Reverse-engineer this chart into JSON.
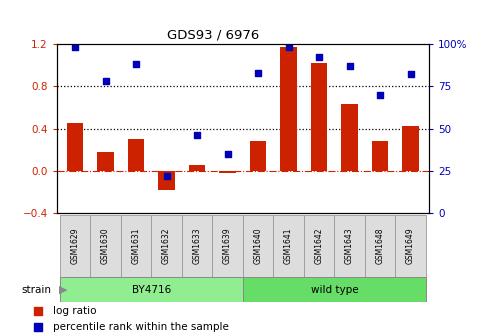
{
  "title": "GDS93 / 6976",
  "samples": [
    "GSM1629",
    "GSM1630",
    "GSM1631",
    "GSM1632",
    "GSM1633",
    "GSM1639",
    "GSM1640",
    "GSM1641",
    "GSM1642",
    "GSM1643",
    "GSM1648",
    "GSM1649"
  ],
  "log_ratio": [
    0.45,
    0.18,
    0.3,
    -0.18,
    0.06,
    -0.02,
    0.28,
    1.17,
    1.02,
    0.63,
    0.28,
    0.42
  ],
  "percentile_rank": [
    98,
    78,
    88,
    22,
    46,
    35,
    83,
    98,
    92,
    87,
    70,
    82
  ],
  "bar_color": "#CC2200",
  "dot_color": "#0000BB",
  "ylim_left": [
    -0.4,
    1.2
  ],
  "ylim_right": [
    0,
    100
  ],
  "yticks_left": [
    -0.4,
    0.0,
    0.4,
    0.8,
    1.2
  ],
  "yticks_right": [
    0,
    25,
    50,
    75,
    100
  ],
  "by4716_color": "#90EE90",
  "wildtype_color": "#66DD66",
  "label_bg_color": "#DDDDDD",
  "strain_label": "strain",
  "legend_log_ratio": "log ratio",
  "legend_percentile": "percentile rank within the sample"
}
